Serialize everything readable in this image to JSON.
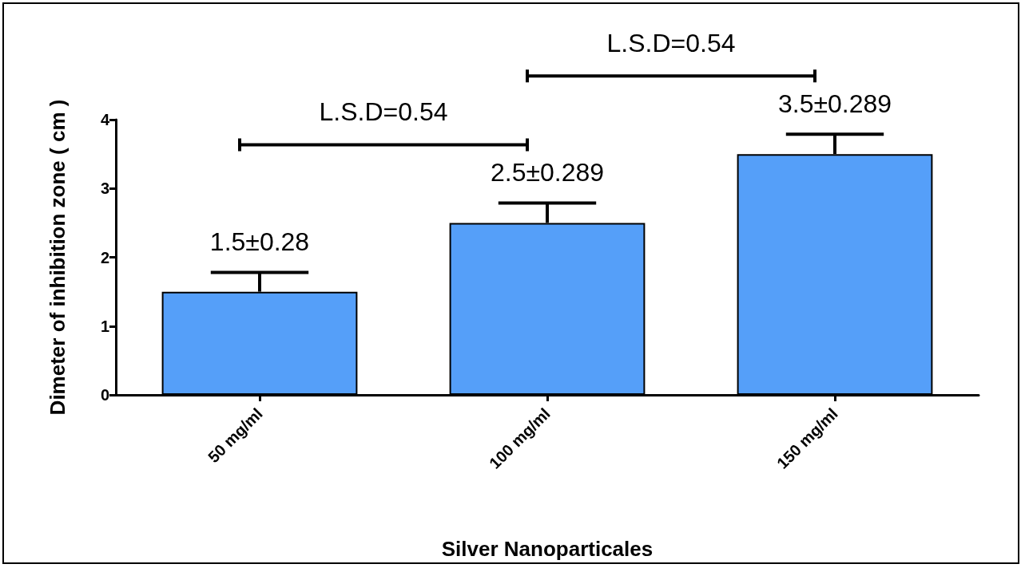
{
  "chart_data": {
    "type": "bar",
    "xlabel": "Silver Nanoparticales",
    "ylabel": "Dimeter of inhibition zone ( cm )",
    "categories": [
      "50 mg/ml",
      "100 mg/ml",
      "150 mg/ml"
    ],
    "values": [
      1.5,
      2.5,
      3.5
    ],
    "color": "#559ff9",
    "errors": [
      [
        1.5,
        1.78
      ],
      [
        2.5,
        2.789
      ],
      [
        3.5,
        3.789
      ]
    ],
    "value_labels": [
      "1.5±0.28",
      "2.5±0.289",
      "3.5±0.289"
    ],
    "annotations": [
      "L.S.D=0.54",
      "L.S.D=0.54"
    ],
    "ylim": [
      0,
      4
    ],
    "yticks": [
      0,
      1,
      2,
      3,
      4
    ],
    "grid": false
  }
}
